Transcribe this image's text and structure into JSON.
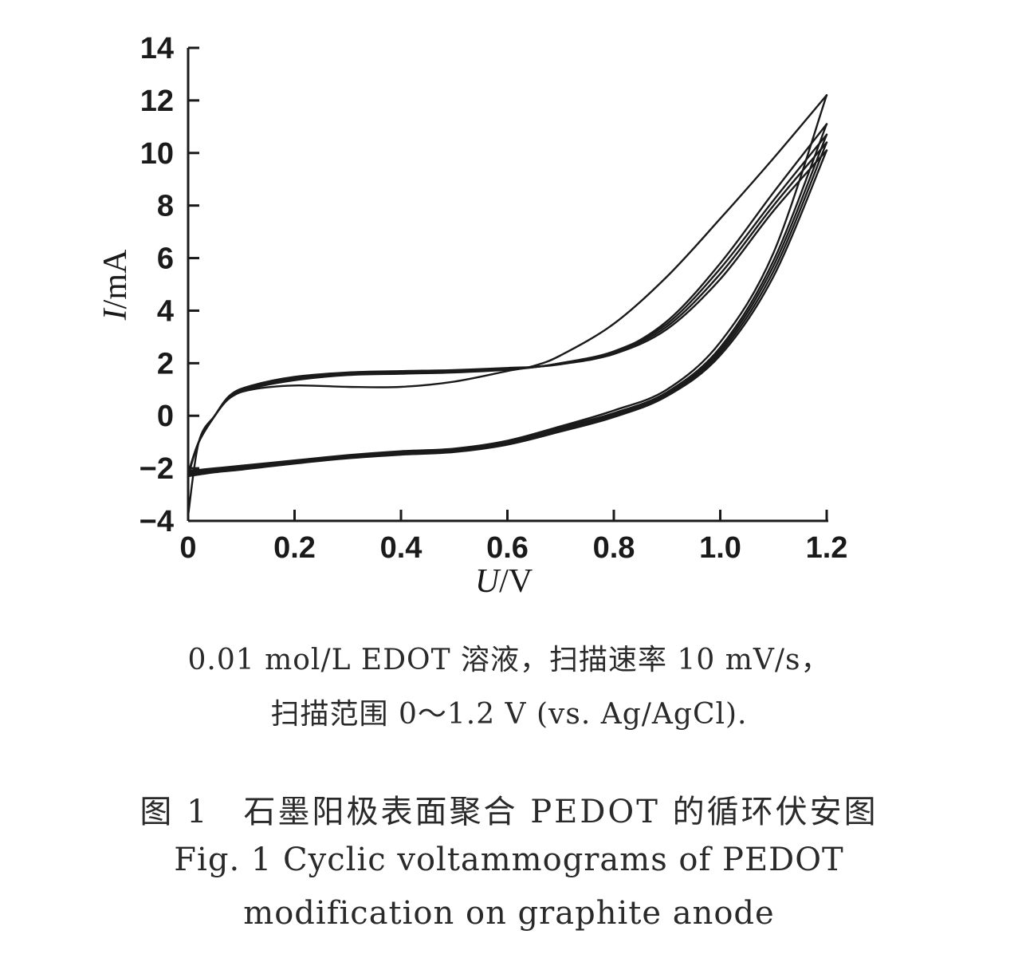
{
  "chart_data": {
    "type": "line",
    "xlabel": {
      "var": "U",
      "unit": "/V"
    },
    "ylabel": {
      "var": "I",
      "unit": "/mA"
    },
    "xlim": [
      0,
      1.2
    ],
    "ylim": [
      -4,
      14
    ],
    "x_ticks": [
      "0",
      "0.2",
      "0.4",
      "0.6",
      "0.8",
      "1.0",
      "1.2"
    ],
    "y_ticks": [
      "−4",
      "−2",
      "0",
      "2",
      "4",
      "6",
      "8",
      "10",
      "12",
      "14"
    ],
    "series": [
      {
        "x": [
          0,
          0.02,
          0.05,
          0.08,
          0.12,
          0.2,
          0.3,
          0.4,
          0.5,
          0.6,
          0.65,
          0.7,
          0.8,
          0.9,
          1.0,
          1.1,
          1.2
        ],
        "y": [
          -3.8,
          -1.0,
          0.0,
          0.7,
          1.0,
          1.15,
          1.1,
          1.1,
          1.3,
          1.7,
          1.9,
          2.3,
          3.5,
          5.3,
          7.5,
          9.8,
          12.2
        ]
      },
      {
        "x": [
          1.2,
          1.1,
          1.0,
          0.9,
          0.8,
          0.7,
          0.6,
          0.5,
          0.4,
          0.3,
          0.2,
          0.1,
          0.05,
          0
        ],
        "y": [
          12.2,
          6.2,
          2.8,
          1.0,
          0.2,
          -0.4,
          -0.95,
          -1.25,
          -1.35,
          -1.5,
          -1.7,
          -1.9,
          -2.0,
          -2.1
        ]
      },
      {
        "x": [
          0,
          0.02,
          0.05,
          0.08,
          0.12,
          0.2,
          0.3,
          0.4,
          0.5,
          0.6,
          0.65,
          0.7,
          0.8,
          0.9,
          1.0,
          1.1,
          1.2
        ],
        "y": [
          -2.2,
          -1.0,
          0.0,
          0.75,
          1.05,
          1.35,
          1.55,
          1.6,
          1.65,
          1.75,
          1.85,
          2.0,
          2.4,
          3.6,
          5.8,
          8.5,
          11.1
        ]
      },
      {
        "x": [
          1.2,
          1.1,
          1.0,
          0.9,
          0.8,
          0.7,
          0.6,
          0.5,
          0.4,
          0.3,
          0.2,
          0.1,
          0.05,
          0
        ],
        "y": [
          11.1,
          5.9,
          2.6,
          0.9,
          0.1,
          -0.45,
          -1.0,
          -1.3,
          -1.4,
          -1.55,
          -1.75,
          -1.95,
          -2.05,
          -2.15
        ]
      },
      {
        "x": [
          0,
          0.02,
          0.05,
          0.08,
          0.12,
          0.2,
          0.3,
          0.4,
          0.5,
          0.6,
          0.65,
          0.7,
          0.8,
          0.9,
          1.0,
          1.1,
          1.2
        ],
        "y": [
          -2.2,
          -1.0,
          0.0,
          0.78,
          1.1,
          1.4,
          1.6,
          1.65,
          1.7,
          1.78,
          1.85,
          2.0,
          2.45,
          3.5,
          5.6,
          8.2,
          10.7
        ]
      },
      {
        "x": [
          1.2,
          1.1,
          1.0,
          0.9,
          0.8,
          0.7,
          0.6,
          0.5,
          0.4,
          0.3,
          0.2,
          0.1,
          0.05,
          0
        ],
        "y": [
          10.7,
          5.7,
          2.5,
          0.85,
          0.05,
          -0.5,
          -1.05,
          -1.32,
          -1.42,
          -1.58,
          -1.78,
          -2.0,
          -2.1,
          -2.2
        ]
      },
      {
        "x": [
          0,
          0.02,
          0.05,
          0.08,
          0.12,
          0.2,
          0.3,
          0.4,
          0.5,
          0.6,
          0.65,
          0.7,
          0.8,
          0.9,
          1.0,
          1.1,
          1.2
        ],
        "y": [
          -2.25,
          -1.0,
          0.0,
          0.8,
          1.12,
          1.45,
          1.62,
          1.68,
          1.72,
          1.8,
          1.85,
          1.98,
          2.4,
          3.4,
          5.4,
          8.0,
          10.4
        ]
      },
      {
        "x": [
          1.2,
          1.1,
          1.0,
          0.9,
          0.8,
          0.7,
          0.6,
          0.5,
          0.4,
          0.3,
          0.2,
          0.1,
          0.05,
          0
        ],
        "y": [
          10.4,
          5.5,
          2.4,
          0.8,
          0.0,
          -0.55,
          -1.08,
          -1.35,
          -1.45,
          -1.6,
          -1.8,
          -2.02,
          -2.12,
          -2.25
        ]
      },
      {
        "x": [
          0,
          0.02,
          0.05,
          0.08,
          0.12,
          0.2,
          0.3,
          0.4,
          0.5,
          0.6,
          0.65,
          0.7,
          0.8,
          0.9,
          1.0,
          1.1,
          1.2
        ],
        "y": [
          -2.3,
          -1.0,
          0.0,
          0.8,
          1.15,
          1.48,
          1.65,
          1.7,
          1.74,
          1.82,
          1.86,
          1.96,
          2.35,
          3.3,
          5.2,
          7.8,
          10.1
        ]
      },
      {
        "x": [
          1.2,
          1.1,
          1.0,
          0.9,
          0.8,
          0.7,
          0.6,
          0.5,
          0.4,
          0.3,
          0.2,
          0.1,
          0.05,
          0
        ],
        "y": [
          10.1,
          5.3,
          2.3,
          0.75,
          -0.05,
          -0.6,
          -1.1,
          -1.38,
          -1.48,
          -1.62,
          -1.82,
          -2.05,
          -2.15,
          -2.3
        ]
      }
    ]
  },
  "caption": {
    "note_line1": "0.01 mol/L EDOT 溶液，扫描速率 10 mV/s，",
    "note_line2": "扫描范围 0～1.2 V (vs. Ag/AgCl).",
    "title_cn": "图 1　石墨阳极表面聚合 PEDOT 的循环伏安图",
    "title_en_line1": "Fig. 1  Cyclic voltammograms of PEDOT",
    "title_en_line2": "modification on graphite anode"
  },
  "colors": {
    "ink": "#1a1a1a"
  }
}
